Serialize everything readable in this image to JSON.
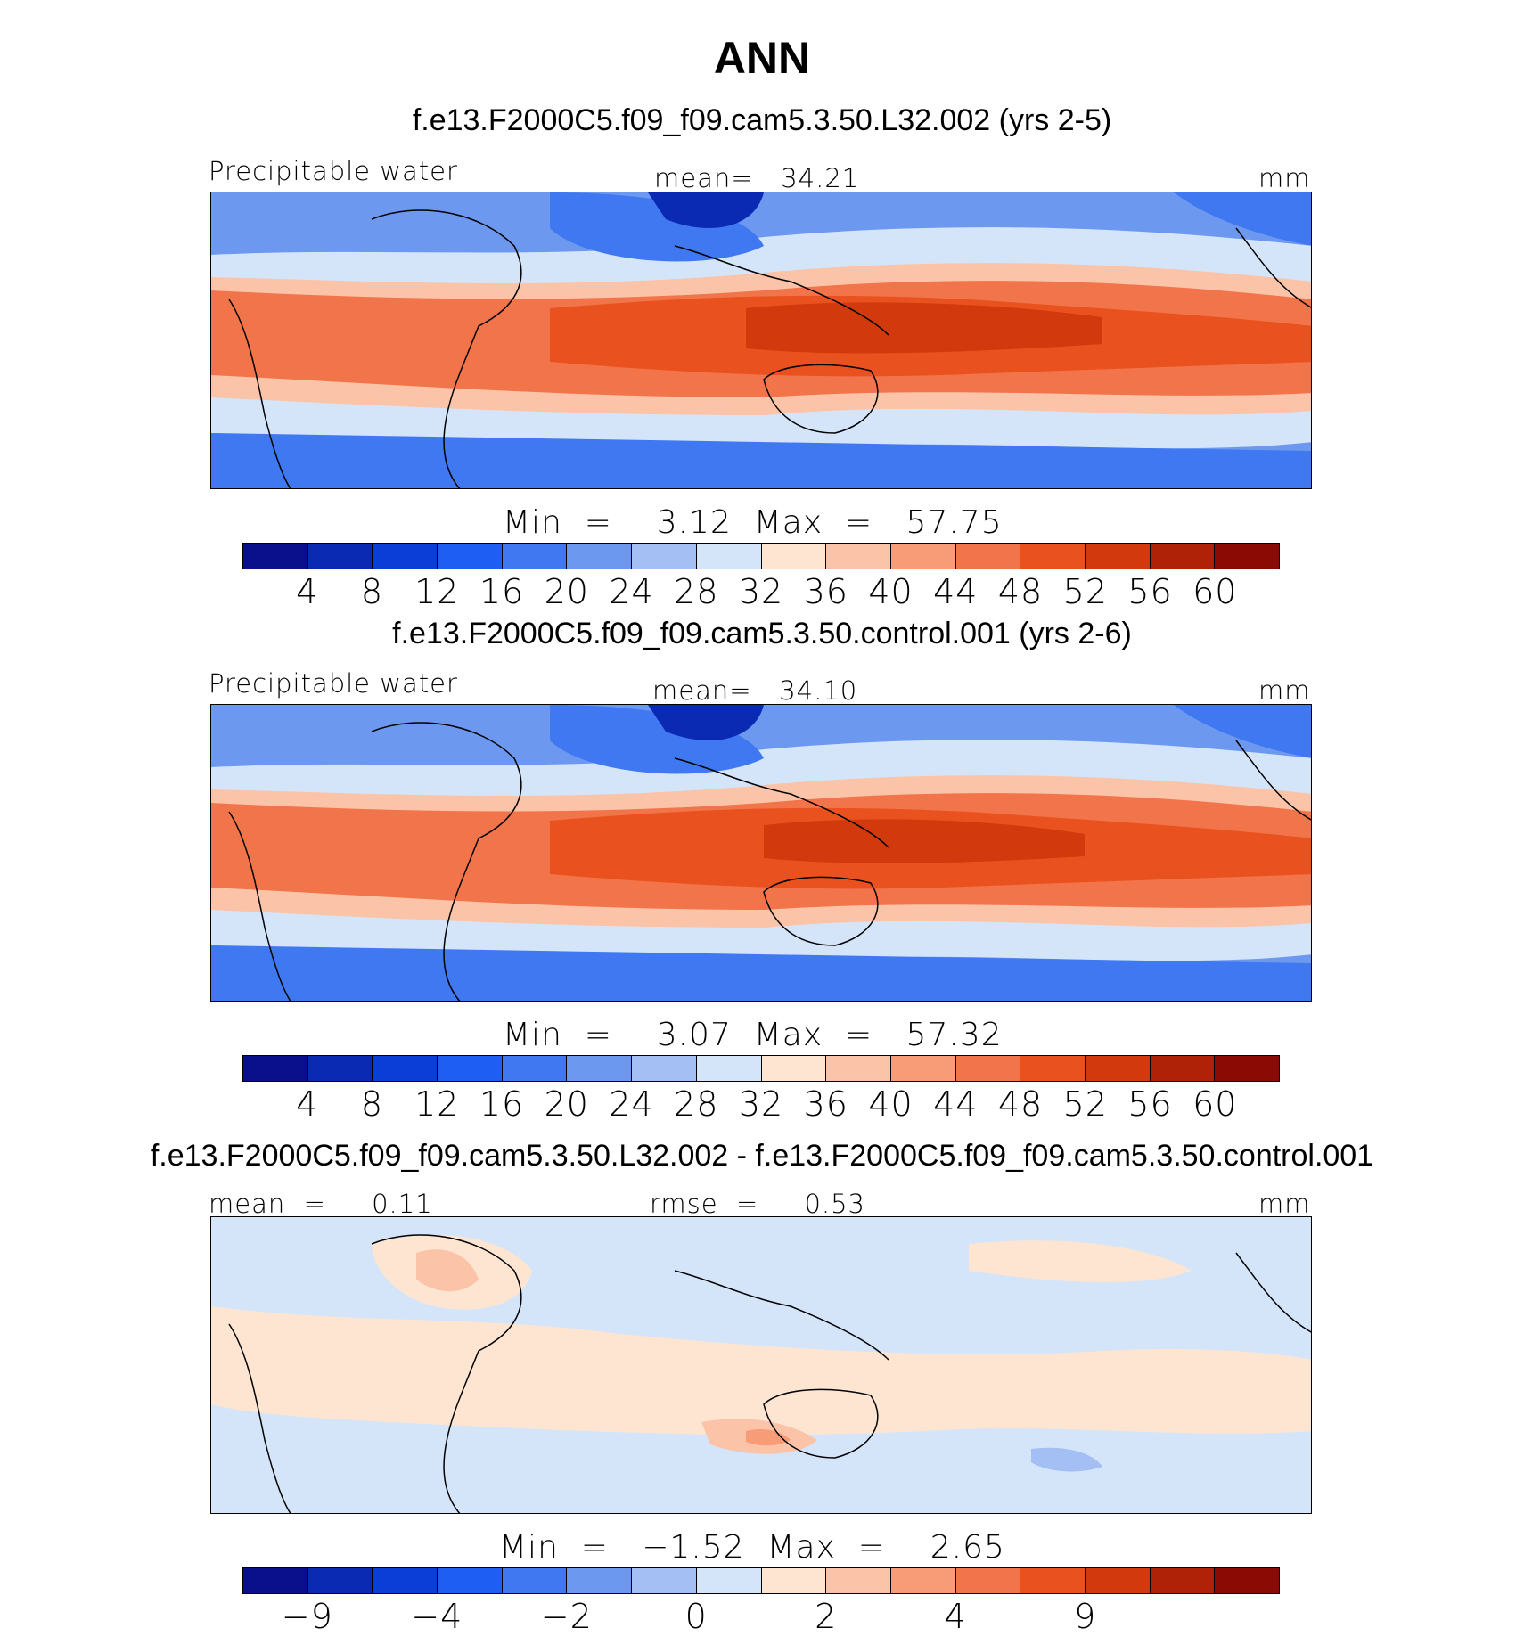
{
  "title": "ANN",
  "colors": [
    "#0a0f8c",
    "#0b2ab4",
    "#0b3ed6",
    "#1f5ef2",
    "#3f78f0",
    "#6d98f0",
    "#a3bff4",
    "#d4e5f9",
    "#fde5d2",
    "#fbc4a8",
    "#f79c77",
    "#f2744b",
    "#e9521e",
    "#d2390c",
    "#b02208",
    "#8c0a04"
  ],
  "panels": [
    {
      "case_title": "f.e13.F2000C5.f09_f09.cam5.3.50.L32.002 (yrs 2-5)",
      "left_label": "Precipitable water",
      "center_label": "mean=   34.21",
      "units": "mm",
      "stats": "Min  =    3.12  Max  =   57.75",
      "colorbar_ticks": [
        "4",
        "8",
        "12",
        "16",
        "20",
        "24",
        "28",
        "32",
        "36",
        "40",
        "44",
        "48",
        "52",
        "56",
        "60"
      ]
    },
    {
      "case_title": "f.e13.F2000C5.f09_f09.cam5.3.50.control.001 (yrs 2-6)",
      "left_label": "Precipitable water",
      "center_label": "mean=   34.10",
      "units": "mm",
      "stats": "Min  =    3.07  Max  =   57.32",
      "colorbar_ticks": [
        "4",
        "8",
        "12",
        "16",
        "20",
        "24",
        "28",
        "32",
        "36",
        "40",
        "44",
        "48",
        "52",
        "56",
        "60"
      ]
    },
    {
      "case_title": "f.e13.F2000C5.f09_f09.cam5.3.50.L32.002 - f.e13.F2000C5.f09_f09.cam5.3.50.control.001",
      "left_label": "mean  =     0.11",
      "center_label": "rmse  =     0.53",
      "units": "mm",
      "stats": "Min  =   −1.52  Max  =    2.65",
      "colorbar_ticks": [
        "−9",
        "−4",
        "−2",
        "0",
        "2",
        "4",
        "9"
      ]
    }
  ]
}
